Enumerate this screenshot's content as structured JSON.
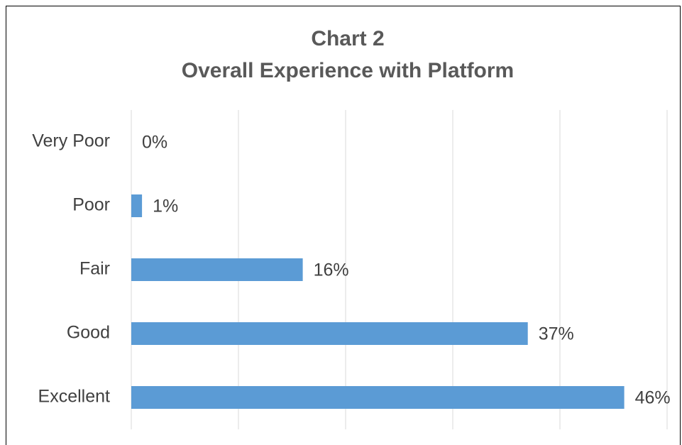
{
  "chart_data": {
    "type": "barh",
    "title": "Chart 2",
    "subtitle": "Overall Experience with Platform",
    "categories": [
      "Very Poor",
      "Poor",
      "Fair",
      "Good",
      "Excellent"
    ],
    "values": [
      0,
      1,
      16,
      37,
      46
    ],
    "value_labels": [
      "0%",
      "1%",
      "16%",
      "37%",
      "46%"
    ],
    "color": "#5b9bd5",
    "xlim": [
      0,
      50
    ],
    "xticks": [
      0,
      10,
      20,
      30,
      40,
      50
    ],
    "grid": true,
    "tick_labels": false
  }
}
